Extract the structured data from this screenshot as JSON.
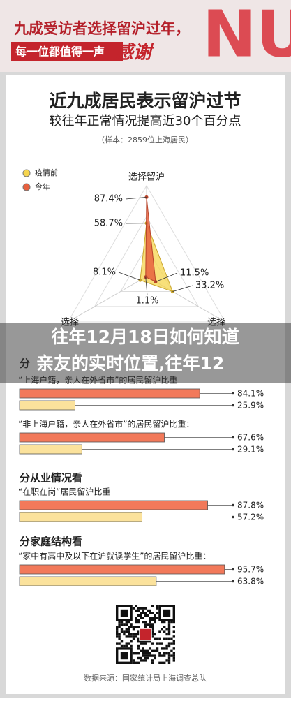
{
  "header": {
    "title": "九成受访者选择留沪过年，",
    "line2": "每一位都值得一声",
    "accent": "感谢"
  },
  "main_title": "近九成居民表示留沪过节",
  "subtitle": "较往年正常情况提高近30个百分点",
  "note": "（样本：2859位上海居民）",
  "overlay_title": [
    "往年12月18日如何知道",
    "亲友的实时位置,往年12"
  ],
  "chart_data": [
    {
      "type": "radar",
      "categories": [
        "选择留沪",
        "选择",
        "选择"
      ],
      "rlim": [
        0,
        100
      ],
      "series": [
        {
          "name": "疫情前",
          "color": "#f6d54e",
          "values": [
            58.7,
            33.2,
            8.1
          ],
          "value_labels": [
            "58.7%",
            "33.2%",
            "8.1%"
          ]
        },
        {
          "name": "今年",
          "color": "#e8603e",
          "values": [
            87.4,
            11.5,
            1.1
          ],
          "value_labels": [
            "87.4%",
            "11.5%",
            "1.1%"
          ]
        }
      ]
    },
    {
      "type": "hbar",
      "xlim": [
        0,
        100
      ],
      "colors": [
        "#f2795a",
        "#fbe29c"
      ],
      "groups": [
        {
          "heading": "分",
          "label": "“上海户籍，亲人在外省市”的居民留沪比重",
          "values": [
            84.1,
            25.9
          ],
          "value_labels": [
            "84.1%",
            "25.9%"
          ]
        },
        {
          "label": "“非上海户籍，亲人在外省市”的居民留沪比重：",
          "values": [
            67.6,
            29.1
          ],
          "value_labels": [
            "67.6%",
            "29.1%"
          ]
        },
        {
          "heading": "分从业情况看",
          "label": "“在职在岗”居民留沪比重",
          "values": [
            87.8,
            57.2
          ],
          "value_labels": [
            "87.8%",
            "57.2%"
          ]
        },
        {
          "heading": "分家庭结构看",
          "label": "“家中有高中及以下在沪就读学生”的居民留沪比重：",
          "values": [
            95.7,
            63.8
          ],
          "value_labels": [
            "95.7%",
            "63.8%"
          ]
        }
      ]
    }
  ],
  "source": "数据来源：国家统计局上海调查总队"
}
